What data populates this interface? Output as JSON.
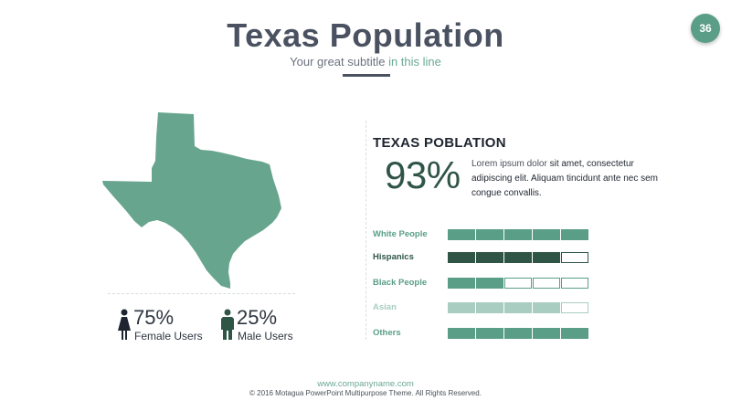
{
  "header": {
    "title": "Texas Population",
    "subtitle_main": "Your great subtitle ",
    "subtitle_accent": "in this line",
    "page_number": "36"
  },
  "map": {
    "region": "Texas",
    "fill_color": "#68a58f"
  },
  "users": {
    "female": {
      "percent": "75%",
      "label": "Female Users",
      "icon": "female-person-icon"
    },
    "male": {
      "percent": "25%",
      "label": "Male Users",
      "icon": "male-person-icon"
    }
  },
  "stats": {
    "heading": "TEXAS POBLATION",
    "percent": "93%",
    "desc_part1": "Lorem ipsum dolor ",
    "desc_part2": "sit amet, consectetur adipiscing elit. Aliquam tincidunt ante nec sem congue convallis."
  },
  "bars": [
    {
      "label": "White People",
      "filled": 5,
      "total": 5,
      "color": "#5a9e88"
    },
    {
      "label": "Hispanics",
      "filled": 4,
      "total": 5,
      "color": "#2f5546"
    },
    {
      "label": "Black People",
      "filled": 2,
      "total": 5,
      "color": "#5a9e88"
    },
    {
      "label": "Asian",
      "filled": 4,
      "total": 5,
      "color": "#a9cdc1"
    },
    {
      "label": "Others",
      "filled": 5,
      "total": 5,
      "color": "#5a9e88"
    }
  ],
  "footer": {
    "url": "www.companyname.com",
    "copyright": "© 2016 Motagua PowerPoint Multipurpose Theme. All Rights Reserved."
  }
}
